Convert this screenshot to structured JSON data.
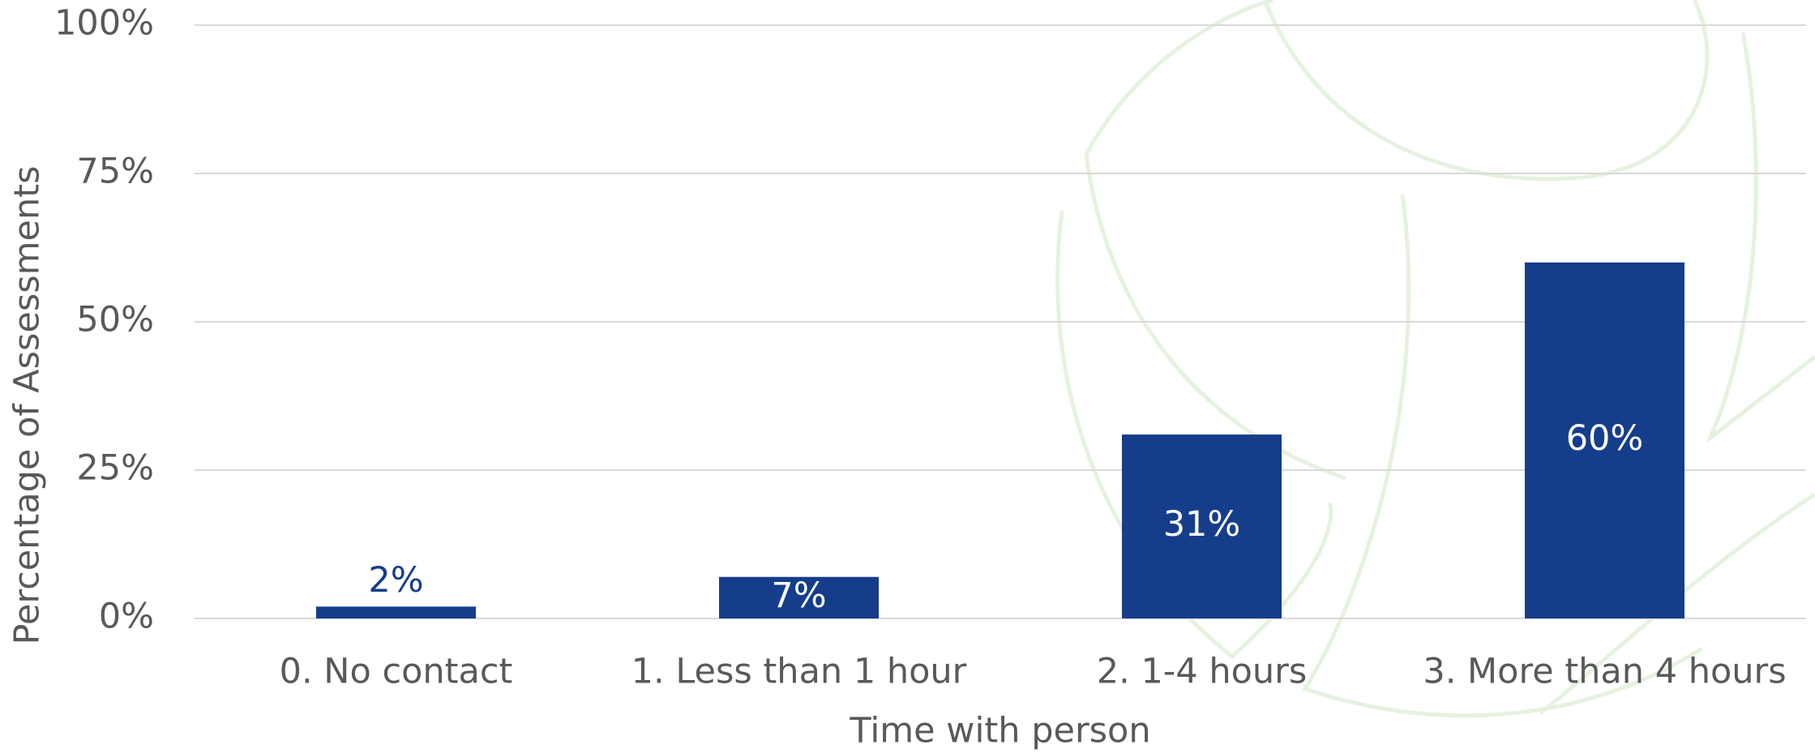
{
  "chart_data": {
    "type": "bar",
    "x_label": "Time with person",
    "y_label": "Percentage of Assessments",
    "categories": [
      "0. No contact",
      "1. Less than 1 hour",
      "2. 1-4 hours",
      "3. More than 4 hours"
    ],
    "values": [
      2,
      7,
      31,
      60
    ],
    "value_labels": [
      "2%",
      "7%",
      "31%",
      "60%"
    ],
    "color": "#153d8a",
    "ylim": [
      0,
      100
    ],
    "yticks": [
      {
        "value": 0,
        "label": "0%"
      },
      {
        "value": 25,
        "label": "25%"
      },
      {
        "value": 50,
        "label": "50%"
      },
      {
        "value": 75,
        "label": "75%"
      },
      {
        "value": 100,
        "label": "100%"
      }
    ],
    "grid": true
  }
}
